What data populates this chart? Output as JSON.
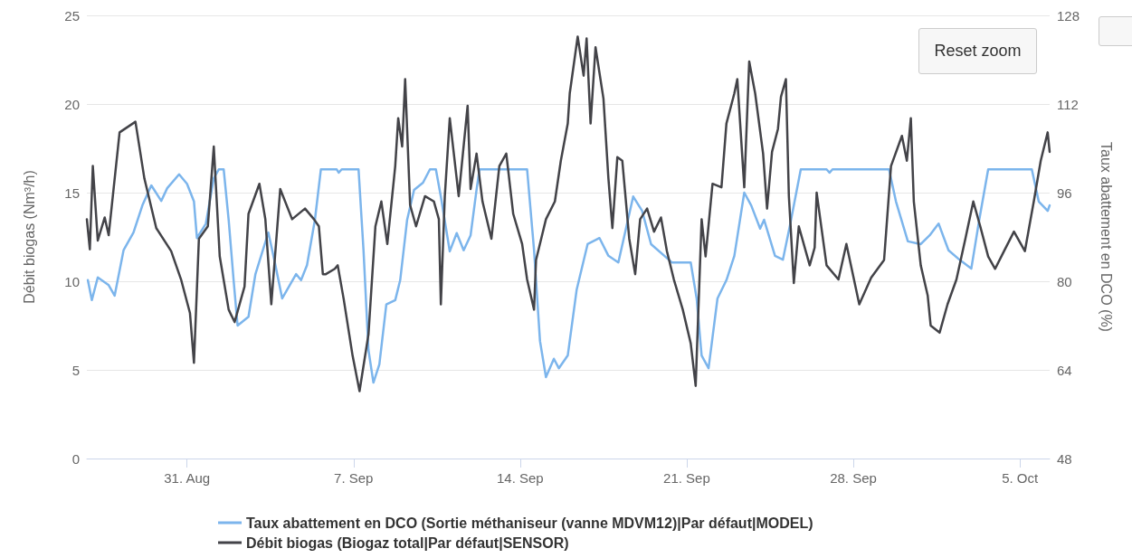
{
  "chart_data": {
    "type": "line",
    "ylabel": "Débit biogas (Nm³/h)",
    "y2label": "Taux abattement en DCO (%)",
    "xlim": [
      "--08-26T19:00",
      "--10-06T06:00"
    ],
    "xticks": [
      {
        "value": "--08-31",
        "label": "31. Aug"
      },
      {
        "value": "--09-07",
        "label": "7. Sep"
      },
      {
        "value": "--09-14",
        "label": "14. Sep"
      },
      {
        "value": "--09-21",
        "label": "21. Sep"
      },
      {
        "value": "--09-28",
        "label": "28. Sep"
      },
      {
        "value": "--10-05",
        "label": "5. Oct"
      }
    ],
    "ylim": [
      0,
      25
    ],
    "yticks": [
      0,
      5,
      10,
      15,
      20,
      25
    ],
    "y2lim": [
      48,
      128
    ],
    "y2ticks": [
      48,
      64,
      80,
      96,
      112,
      128
    ],
    "annotations": [
      "Reset zoom"
    ],
    "grid": "y",
    "legend": "bottom",
    "marker": "none",
    "line_style": "solid",
    "series": [
      {
        "name": "Taux abattement en DCO (Sortie méthaniseur (vanne MDVM12)|Par défaut|MODEL)",
        "color": "#7cb5ec",
        "axis": "y2",
        "x": [
          "--08-26T20:00",
          "--08-27T00:00",
          "--08-27T06:00",
          "--08-27T17:00",
          "--08-27T23:00",
          "--08-28T08:00",
          "--08-28T18:00",
          "--08-29T03:00",
          "--08-29T12:00",
          "--08-29T22:00",
          "--08-30T04:00",
          "--08-30T16:00",
          "--08-31T00:00",
          "--08-31T07:00",
          "--08-31T10:00",
          "--08-31T19:00",
          "--09-01T03:00",
          "--09-01T08:00",
          "--09-01T13:00",
          "--09-01T18:00",
          "--09-01T23:00",
          "--09-02T03:00",
          "--09-02T14:00",
          "--09-02T21:00",
          "--09-03T10:00",
          "--09-03T16:00",
          "--09-04T00:00",
          "--09-04T14:00",
          "--09-04T19:00",
          "--09-05T01:00",
          "--09-05T09:00",
          "--09-05T15:00",
          "--09-06T07:00",
          "--09-06T09:00",
          "--09-06T12:00",
          "--09-07T05:00",
          "--09-07T10:00",
          "--09-07T15:00",
          "--09-07T20:00",
          "--09-08T02:00",
          "--09-08T09:00",
          "--09-08T18:00",
          "--09-08T23:00",
          "--09-09T06:00",
          "--09-09T13:00",
          "--09-09T22:00",
          "--09-10T05:00",
          "--09-10T11:00",
          "--09-10T16:00",
          "--09-11T01:00",
          "--09-11T08:00",
          "--09-11T15:00",
          "--09-11T22:00",
          "--09-12T04:00",
          "--09-12T07:00",
          "--09-14T07:00",
          "--09-14T14:00",
          "--09-14T20:00",
          "--09-15T02:00",
          "--09-15T10:00",
          "--09-15T15:00",
          "--09-16T00:00",
          "--09-16T09:00",
          "--09-16T20:00",
          "--09-17T08:00",
          "--09-17T17:00",
          "--09-18T03:00",
          "--09-18T18:00",
          "--09-19T03:00",
          "--09-19T12:00",
          "--09-20T09:00",
          "--09-21T04:00",
          "--09-21T10:00",
          "--09-21T15:00",
          "--09-21T22:00",
          "--09-22T07:00",
          "--09-22T16:00",
          "--09-23T00:00",
          "--09-23T10:00",
          "--09-23T17:00",
          "--09-24T02:00",
          "--09-24T06:00",
          "--09-24T17:00",
          "--09-25T01:00",
          "--09-25T08:00",
          "--09-25T19:00",
          "--09-26T21:00",
          "--09-27T00:00",
          "--09-27T03:00",
          "--09-29T12:00",
          "--09-29T19:00",
          "--09-30T07:00",
          "--09-30T20:00",
          "--10-01T05:00",
          "--10-01T14:00",
          "--10-02T00:00",
          "--10-02T11:00",
          "--10-02T23:00",
          "--10-03T07:00",
          "--10-03T16:00",
          "--10-05T12:00",
          "--10-05T19:00",
          "--10-06T04:00",
          "--10-06T06:00"
        ],
        "values": [
          80.2,
          76.6,
          80.7,
          79.3,
          77.4,
          85.6,
          88.8,
          93.7,
          97.3,
          94.5,
          96.8,
          99.3,
          97.6,
          94.4,
          87.8,
          90.4,
          98.6,
          100.2,
          100.2,
          91.1,
          80.2,
          72.0,
          73.6,
          81.3,
          88.8,
          83.9,
          76.9,
          81.3,
          80.2,
          82.9,
          91.1,
          100.2,
          100.2,
          99.6,
          100.2,
          100.2,
          85.6,
          67.6,
          61.7,
          65.0,
          75.8,
          76.6,
          80.2,
          91.1,
          96.5,
          97.8,
          100.2,
          100.2,
          95.3,
          85.4,
          88.7,
          85.6,
          88.3,
          96.5,
          100.2,
          100.2,
          85.6,
          69.2,
          62.7,
          66.0,
          64.3,
          66.6,
          78.5,
          86.7,
          87.8,
          84.6,
          83.4,
          95.3,
          92.7,
          86.7,
          83.4,
          83.4,
          76.9,
          66.6,
          64.3,
          76.9,
          80.2,
          84.6,
          96.0,
          93.7,
          89.5,
          91.1,
          84.6,
          83.9,
          90.0,
          100.2,
          100.2,
          99.6,
          100.2,
          100.2,
          94.4,
          87.2,
          86.7,
          88.3,
          90.4,
          85.6,
          83.9,
          82.3,
          91.1,
          100.2,
          100.2,
          94.4,
          92.7,
          93.7
        ]
      },
      {
        "name": "Débit biogas (Biogaz total|Par défaut|SENSOR)",
        "color": "#434348",
        "x": [
          "--08-26T19:00",
          "--08-26T22:00",
          "--08-27T01:00",
          "--08-27T06:00",
          "--08-27T13:00",
          "--08-27T17:00",
          "--08-28T04:00",
          "--08-28T20:00",
          "--08-29T05:00",
          "--08-29T17:00",
          "--08-30T08:00",
          "--08-30T18:00",
          "--08-31T03:00",
          "--08-31T07:00",
          "--08-31T12:00",
          "--08-31T21:00",
          "--09-01T03:00",
          "--09-01T09:00",
          "--09-01T18:00",
          "--09-02T00:00",
          "--09-02T10:00",
          "--09-02T14:00",
          "--09-03T01:00",
          "--09-03T07:00",
          "--09-03T13:00",
          "--09-03T22:00",
          "--09-04T10:00",
          "--09-04T23:00",
          "--09-05T08:00",
          "--09-05T13:00",
          "--09-05T17:00",
          "--09-05T20:00",
          "--09-06T05:00",
          "--09-06T08:00",
          "--09-06T14:00",
          "--09-06T23:00",
          "--09-07T06:00",
          "--09-07T15:00",
          "--09-07T22:00",
          "--09-08T04:00",
          "--09-08T10:00",
          "--09-08T18:00",
          "--09-08T21:00",
          "--09-09T01:00",
          "--09-09T04:00",
          "--09-09T09:00",
          "--09-09T15:00",
          "--09-10T00:00",
          "--09-10T09:00",
          "--09-10T14:00",
          "--09-10T16:00",
          "--09-10T20:00",
          "--09-11T01:00",
          "--09-11T10:00",
          "--09-11T19:00",
          "--09-11T22:00",
          "--09-12T04:00",
          "--09-12T10:00",
          "--09-12T19:00",
          "--09-13T03:00",
          "--09-13T10:00",
          "--09-13T17:00",
          "--09-14T02:00",
          "--09-14T07:00",
          "--09-14T14:00",
          "--09-14T16:00",
          "--09-15T02:00",
          "--09-15T11:00",
          "--09-15T17:00",
          "--09-16T00:00",
          "--09-16T02:00",
          "--09-16T10:00",
          "--09-16T16:00",
          "--09-16T19:00",
          "--09-16T23:00",
          "--09-17T04:00",
          "--09-17T12:00",
          "--09-17T17:00",
          "--09-17T21:00",
          "--09-18T02:00",
          "--09-18T07:00",
          "--09-18T14:00",
          "--09-18T20:00",
          "--09-19T01:00",
          "--09-19T08:00",
          "--09-19T15:00",
          "--09-19T22:00",
          "--09-20T04:00",
          "--09-20T11:00",
          "--09-20T20:00",
          "--09-21T04:00",
          "--09-21T09:00",
          "--09-21T15:00",
          "--09-21T19:00",
          "--09-22T02:00",
          "--09-22T11:00",
          "--09-22T16:00",
          "--09-23T00:00",
          "--09-23T03:00",
          "--09-23T10:00",
          "--09-23T15:00",
          "--09-23T21:00",
          "--09-24T05:00",
          "--09-24T09:00",
          "--09-24T14:00",
          "--09-24T20:00",
          "--09-24T23:00",
          "--09-25T04:00",
          "--09-25T07:00",
          "--09-25T12:00",
          "--09-25T17:00",
          "--09-26T04:00",
          "--09-26T09:00",
          "--09-26T11:00",
          "--09-26T21:00",
          "--09-27T09:00",
          "--09-27T17:00",
          "--09-28T06:00",
          "--09-28T18:00",
          "--09-29T07:00",
          "--09-29T14:00",
          "--09-30T01:00",
          "--09-30T06:00",
          "--09-30T10:00",
          "--09-30T13:00",
          "--09-30T20:00",
          "--10-01T03:00",
          "--10-01T06:00",
          "--10-01T15:00",
          "--10-01T23:00",
          "--10-02T08:00",
          "--10-02T17:00",
          "--10-03T01:00",
          "--10-03T08:00",
          "--10-03T16:00",
          "--10-03T23:00",
          "--10-04T08:00",
          "--10-04T18:00",
          "--10-05T05:00",
          "--10-05T14:00",
          "--10-05T21:00",
          "--10-06T04:00",
          "--10-06T06:00"
        ],
        "values": [
          13.5,
          11.8,
          16.5,
          12.3,
          13.6,
          12.6,
          18.4,
          19.0,
          15.8,
          13.0,
          11.7,
          10.1,
          8.2,
          5.4,
          12.4,
          13.1,
          17.6,
          11.4,
          8.4,
          7.7,
          9.7,
          13.8,
          15.5,
          13.5,
          8.7,
          15.2,
          13.5,
          14.1,
          13.5,
          13.1,
          10.4,
          10.4,
          10.7,
          10.9,
          9.0,
          5.8,
          3.8,
          7.0,
          13.1,
          14.5,
          12.1,
          16.5,
          19.2,
          17.6,
          21.4,
          14.3,
          13.1,
          14.8,
          14.5,
          13.5,
          8.7,
          14.8,
          19.2,
          14.8,
          19.9,
          15.2,
          17.2,
          14.5,
          12.4,
          16.5,
          17.2,
          13.8,
          12.1,
          10.1,
          8.4,
          11.2,
          13.5,
          14.5,
          16.8,
          18.9,
          20.6,
          23.8,
          21.6,
          23.7,
          18.9,
          23.2,
          20.3,
          15.8,
          13.0,
          17.0,
          16.8,
          12.4,
          10.4,
          13.5,
          14.1,
          12.8,
          13.6,
          11.7,
          10.1,
          8.4,
          6.5,
          4.1,
          13.5,
          11.4,
          15.5,
          15.3,
          18.9,
          20.6,
          21.4,
          15.3,
          22.4,
          20.6,
          17.2,
          14.1,
          17.3,
          18.6,
          20.4,
          21.4,
          14.8,
          9.9,
          13.1,
          10.9,
          11.9,
          15.0,
          10.9,
          10.1,
          12.1,
          8.7,
          10.2,
          11.2,
          16.5,
          18.2,
          16.8,
          19.2,
          14.5,
          10.9,
          9.2,
          7.5,
          7.1,
          8.7,
          10.1,
          12.4,
          14.5,
          13.1,
          11.4,
          10.7,
          11.7,
          12.8,
          11.7,
          14.5,
          16.8,
          18.4,
          17.3
        ]
      }
    ]
  }
}
